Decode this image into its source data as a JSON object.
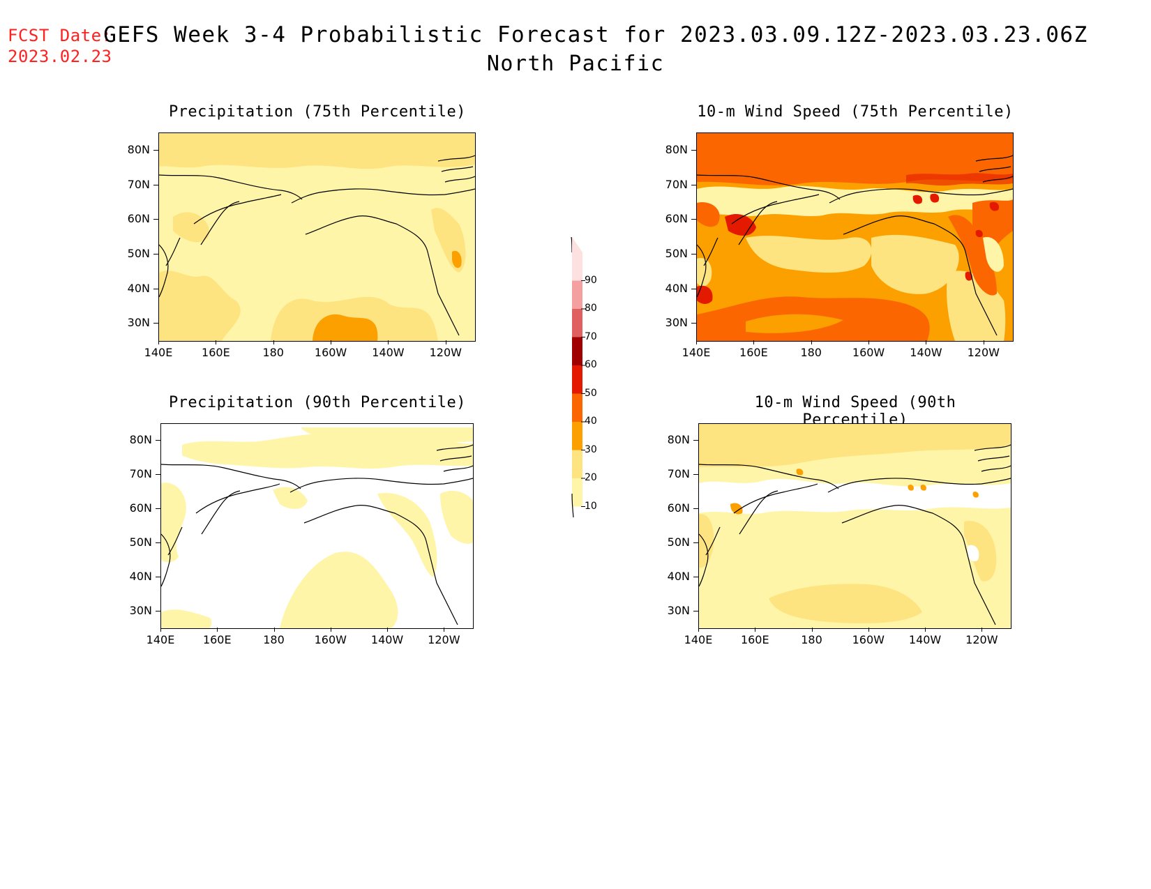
{
  "header": {
    "fcst_label": "FCST Date:",
    "fcst_date": "2023.02.23",
    "title_line1": "GEFS Week 3-4 Probabilistic Forecast for 2023.03.09.12Z-2023.03.23.06Z",
    "title_line2": "North Pacific"
  },
  "colors": {
    "c10": "#fff5a8",
    "c20": "#fde480",
    "c30": "#fca000",
    "c40": "#fb6600",
    "c50": "#e41a00",
    "c60": "#a00000",
    "c70": "#e06060",
    "c80": "#f4a0a0",
    "c90": "#fde0e0",
    "coast": "#000000"
  },
  "axes": {
    "lat_labels": [
      "80N",
      "70N",
      "60N",
      "50N",
      "40N",
      "30N"
    ],
    "lon_labels": [
      "140E",
      "160E",
      "180",
      "160W",
      "140W",
      "120W"
    ]
  },
  "panels": [
    {
      "id": "precip75",
      "title": "Precipitation (75th Percentile)",
      "base": "c10"
    },
    {
      "id": "wind75",
      "title": "10-m Wind Speed (75th Percentile)",
      "base": "c30"
    },
    {
      "id": "precip90",
      "title": "Precipitation (90th Percentile)",
      "base": "white"
    },
    {
      "id": "wind90",
      "title": "10-m Wind Speed (90th Percentile)",
      "base": "c10"
    }
  ],
  "colorbar": {
    "levels": [
      "10",
      "20",
      "30",
      "40",
      "50",
      "60",
      "70",
      "80",
      "90"
    ]
  }
}
